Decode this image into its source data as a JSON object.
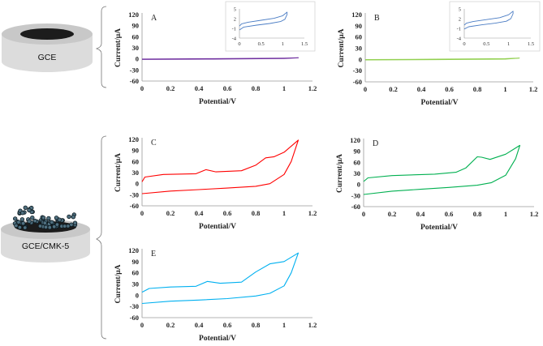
{
  "electrodes": [
    {
      "label": "GCE",
      "panels": [
        "A",
        "B"
      ]
    },
    {
      "label": "GCE/CMK-5",
      "panels": [
        "C",
        "D",
        "E"
      ]
    }
  ],
  "colors": {
    "A": "#7030a0",
    "B": "#92d050",
    "C": "#ff0000",
    "D": "#00b050",
    "E": "#00b0f0",
    "inset": "#4a7cc4",
    "axis": "#9a9a9a"
  },
  "chart_data": [
    {
      "id": "A",
      "type": "line",
      "panel_label": "A",
      "xlabel": "Potential/V",
      "ylabel": "Current/μA",
      "xlim": [
        0,
        1.2
      ],
      "ylim": [
        -60,
        120
      ],
      "xticks": [
        "0",
        "0.2",
        "0.4",
        "0.6",
        "0.8",
        "1",
        "1.2"
      ],
      "yticks": [
        "120",
        "90",
        "60",
        "30",
        "0",
        "-30",
        "-60"
      ],
      "series": [
        {
          "name": "CV",
          "x": [
            0,
            0.5,
            1.0,
            1.1,
            1.0,
            0.5,
            0
          ],
          "y": [
            -0.5,
            0.5,
            1.8,
            3,
            1,
            -0.5,
            -1.5
          ]
        }
      ],
      "inset": {
        "xlim": [
          0,
          1.5
        ],
        "ylim": [
          -4,
          5
        ],
        "xticks": [
          "0",
          "0.5",
          "1",
          "1.5"
        ],
        "yticks": [
          "5",
          "2",
          "-1",
          "-4"
        ],
        "series": [
          {
            "name": "CV zoom",
            "x": [
              0,
              0.05,
              0.2,
              0.5,
              0.8,
              1.0,
              1.1,
              1.1,
              1.05,
              0.95,
              0.7,
              0.4,
              0.1,
              0
            ],
            "y": [
              -0.3,
              0.4,
              0.9,
              1.5,
              2.1,
              2.9,
              4.0,
              3.3,
              1.8,
              1.1,
              0.5,
              0.0,
              -0.6,
              -1.5
            ]
          }
        ]
      }
    },
    {
      "id": "B",
      "type": "line",
      "panel_label": "B",
      "xlabel": "Potential/V",
      "ylabel": "Current/μA",
      "xlim": [
        0,
        1.2
      ],
      "ylim": [
        -60,
        120
      ],
      "xticks": [
        "0",
        "0.2",
        "0.4",
        "0.6",
        "0.8",
        "1",
        "1.2"
      ],
      "yticks": [
        "120",
        "90",
        "60",
        "30",
        "0",
        "-30",
        "-60"
      ],
      "series": [
        {
          "name": "CV",
          "x": [
            0,
            0.5,
            1.0,
            1.1,
            1.0,
            0.5,
            0
          ],
          "y": [
            -0.5,
            0.5,
            2,
            3.5,
            1,
            -0.5,
            -1.5
          ]
        }
      ],
      "inset": {
        "xlim": [
          0,
          1.5
        ],
        "ylim": [
          -4,
          5
        ],
        "xticks": [
          "0",
          "0.5",
          "1",
          "1.5"
        ],
        "yticks": [
          "5",
          "2",
          "-1",
          "-4"
        ],
        "series": [
          {
            "name": "CV zoom",
            "x": [
              0,
              0.05,
              0.2,
              0.5,
              0.8,
              1.0,
              1.1,
              1.1,
              1.05,
              0.95,
              0.7,
              0.4,
              0.1,
              0
            ],
            "y": [
              0.0,
              0.6,
              1.1,
              1.7,
              2.3,
              3.2,
              4.3,
              3.5,
              2.0,
              1.2,
              0.6,
              0.1,
              -0.5,
              -1.2
            ]
          }
        ]
      }
    },
    {
      "id": "C",
      "type": "line",
      "panel_label": "C",
      "xlabel": "Potential/V",
      "ylabel": "Current/μA",
      "xlim": [
        0,
        1.2
      ],
      "ylim": [
        -60,
        120
      ],
      "xticks": [
        "0",
        "0.2",
        "0.4",
        "0.6",
        "0.8",
        "1",
        "1.2"
      ],
      "yticks": [
        "120",
        "90",
        "60",
        "30",
        "0",
        "-30",
        "-60"
      ],
      "series": [
        {
          "name": "CV",
          "x": [
            0,
            0.02,
            0.15,
            0.38,
            0.45,
            0.52,
            0.7,
            0.8,
            0.87,
            0.93,
            1.0,
            1.1,
            1.05,
            1.0,
            0.9,
            0.8,
            0.6,
            0.4,
            0.2,
            0
          ],
          "y": [
            5,
            18,
            25,
            27,
            38,
            32,
            35,
            50,
            70,
            73,
            85,
            118,
            60,
            25,
            0,
            -7,
            -12,
            -16,
            -20,
            -27
          ]
        }
      ]
    },
    {
      "id": "D",
      "type": "line",
      "panel_label": "D",
      "xlabel": "Potential/V",
      "ylabel": "Current/μA",
      "xlim": [
        0,
        1.2
      ],
      "ylim": [
        -60,
        120
      ],
      "xticks": [
        "0",
        "0.2",
        "0.4",
        "0.6",
        "0.8",
        "1",
        "1.2"
      ],
      "yticks": [
        "120",
        "90",
        "60",
        "30",
        "0",
        "-30",
        "-60"
      ],
      "series": [
        {
          "name": "CV",
          "x": [
            0,
            0.03,
            0.2,
            0.5,
            0.65,
            0.72,
            0.8,
            0.83,
            0.89,
            1.0,
            1.1,
            1.07,
            1.0,
            0.9,
            0.8,
            0.6,
            0.4,
            0.2,
            0
          ],
          "y": [
            8,
            18,
            24,
            28,
            33,
            45,
            75,
            74,
            68,
            82,
            106,
            70,
            25,
            5,
            -2,
            -8,
            -13,
            -18,
            -27
          ]
        }
      ]
    },
    {
      "id": "E",
      "type": "line",
      "panel_label": "E",
      "xlabel": "Potential/V",
      "ylabel": "Current/μA",
      "xlim": [
        0,
        1.2
      ],
      "ylim": [
        -60,
        120
      ],
      "xticks": [
        "0",
        "0.2",
        "0.4",
        "0.6",
        "0.8",
        "1",
        "1.2"
      ],
      "yticks": [
        "120",
        "90",
        "60",
        "30",
        "0",
        "-30",
        "-60"
      ],
      "series": [
        {
          "name": "CV",
          "x": [
            0,
            0.05,
            0.2,
            0.38,
            0.46,
            0.55,
            0.7,
            0.8,
            0.9,
            1.0,
            1.1,
            1.05,
            1.0,
            0.9,
            0.8,
            0.6,
            0.4,
            0.2,
            0
          ],
          "y": [
            8,
            18,
            22,
            24,
            37,
            32,
            35,
            62,
            84,
            90,
            113,
            60,
            25,
            5,
            -2,
            -9,
            -13,
            -16,
            -22
          ]
        }
      ]
    }
  ]
}
